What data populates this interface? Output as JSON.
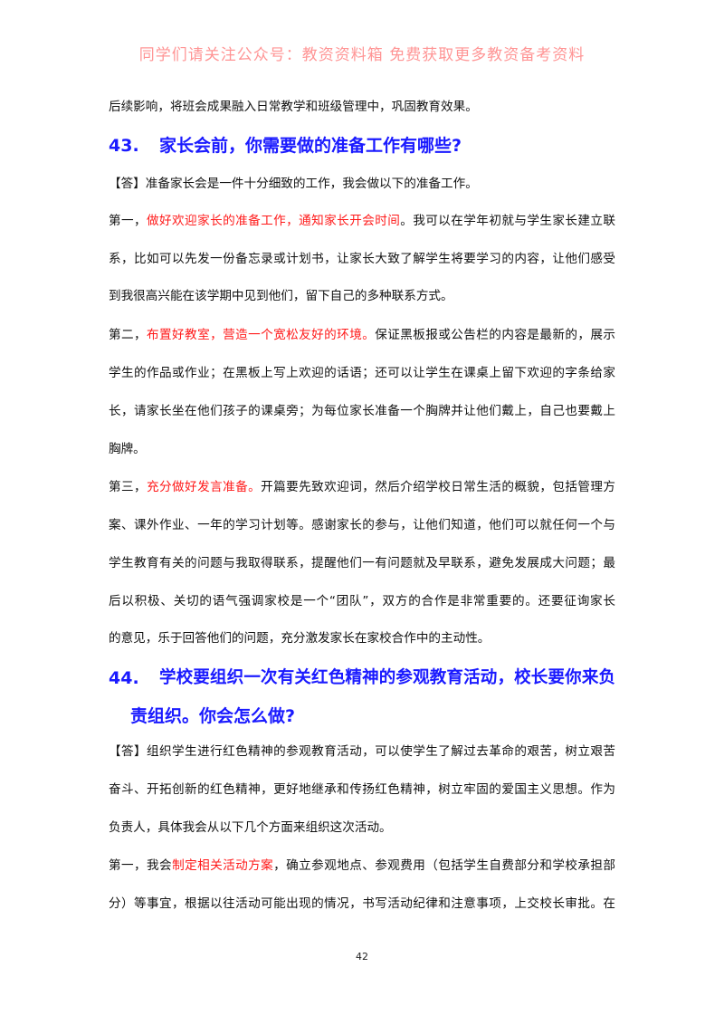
{
  "lines_top": [
    {
      "segs": [
        {
          "t": "后续影响，将班会成果融入日常教学和班级管理中，巩固教育效果。"
        }
      ]
    }
  ],
  "q43": {
    "num": "43.",
    "title": "家长会前，你需要做的准备工作有哪些?"
  },
  "a43": [
    {
      "segs": [
        {
          "t": "【答】准备家长会是一件十分细致的工作，我会做以下的准备工作。"
        }
      ]
    },
    {
      "segs": [
        {
          "t": "第一，"
        },
        {
          "t": "做好欢迎家长的准备工作，通知家长开会时间",
          "red": true
        },
        {
          "t": "。我可以在学年初就与学生家长建立联"
        }
      ]
    },
    {
      "segs": [
        {
          "t": "系，比如可以先发一份备忘录或计划书，让家长大致了解学生将要学习的内容，让他们感受"
        }
      ]
    },
    {
      "segs": [
        {
          "t": "到我很高兴能在该学期中见到他们，留下自己的多种联系方式。"
        }
      ]
    },
    {
      "segs": [
        {
          "t": "第二，"
        },
        {
          "t": "布置好教室，营造一个宽松友好的环境。",
          "red": true
        },
        {
          "t": "保证黑板报或公告栏的内容是最新的，展示"
        }
      ]
    },
    {
      "segs": [
        {
          "t": "学生的作品或作业；在黑板上写上欢迎的话语；还可以让学生在课桌上留下欢迎的字条给家"
        }
      ]
    },
    {
      "segs": [
        {
          "t": "长，请家长坐在他们孩子的课桌旁；为每位家长准备一个胸牌并让他们戴上，自己也要戴上"
        }
      ]
    },
    {
      "segs": [
        {
          "t": "胸牌。"
        }
      ]
    },
    {
      "segs": [
        {
          "t": "第三，"
        },
        {
          "t": "充分做好发言准备。",
          "red": true
        },
        {
          "t": "开篇要先致欢迎词，然后介绍学校日常生活的概貌，包括管理方"
        }
      ]
    },
    {
      "segs": [
        {
          "t": "案、课外作业、一年的学习计划等。感谢家长的参与，让他们知道，他们可以就任何一个与"
        }
      ]
    },
    {
      "segs": [
        {
          "t": "学生教育有关的问题与我取得联系，提醒他们一有问题就及早联系，避免发展成大问题；最"
        }
      ]
    },
    {
      "segs": [
        {
          "t": "后以积极、关切的语气强调家校是一个“团队”，双方的合作是非常重要的。还要征询家长"
        }
      ]
    },
    {
      "segs": [
        {
          "t": "的意见，乐于回答他们的问题，充分激发家长在家校合作中的主动性。"
        }
      ]
    }
  ],
  "q44": {
    "num": "44.",
    "title_line1": "学校要组织一次有关红色精神的参观教育活动，校长要你来负",
    "title_line2": "责组织。你会怎么做?"
  },
  "a44": [
    {
      "segs": [
        {
          "t": "【答】组织学生进行红色精神的参观教育活动，可以使学生了解过去革命的艰苦，树立艰苦"
        }
      ]
    },
    {
      "segs": [
        {
          "t": "奋斗、开拓创新的红色精神，更好地继承和传扬红色精神，树立牢固的爱国主义思想。作为"
        }
      ]
    },
    {
      "segs": [
        {
          "t": "负责人，具体我会从以下几个方面来组织这次活动。"
        }
      ]
    },
    {
      "segs": [
        {
          "t": "第一，我会"
        },
        {
          "t": "制定相关活动方案",
          "red": true
        },
        {
          "t": "，确立参观地点、参观费用（包括学生自费部分和学校承担部"
        }
      ]
    },
    {
      "segs": [
        {
          "t": "分）等事宜，根据以往活动可能出现的情况，书写活动纪律和注意事项，上交校长审批。在"
        }
      ]
    }
  ],
  "page_number": "42",
  "watermark": "同学们请关注公众号：教资资料箱 免费获取更多教资备考资料",
  "colors": {
    "heading": "#1a1aff",
    "highlight": "#ff1a1a",
    "watermark": "#ff3c3c"
  }
}
